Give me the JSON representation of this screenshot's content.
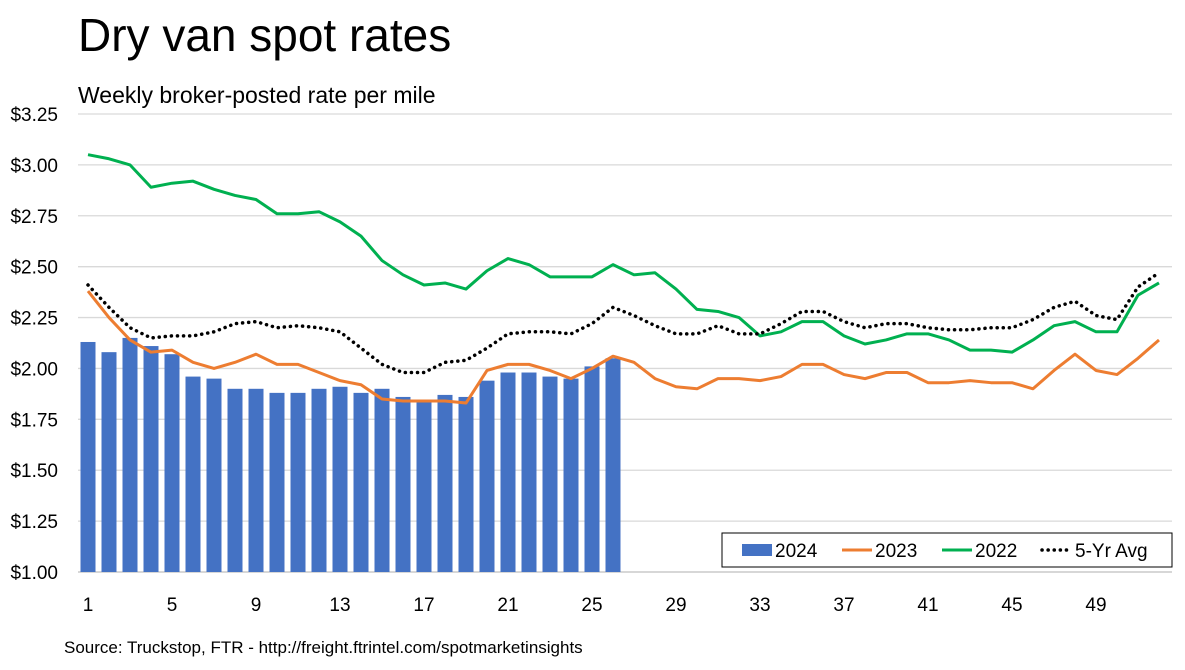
{
  "chart_data": {
    "type": "bar+line",
    "title": "Dry van spot rates",
    "subtitle": "Weekly broker-posted rate per mile",
    "source": "Source: Truckstop, FTR - http://freight.ftrintel.com/spotmarketinsights",
    "ylim": [
      1.0,
      3.25
    ],
    "yticks": [
      "$1.00",
      "$1.25",
      "$1.50",
      "$1.75",
      "$2.00",
      "$2.25",
      "$2.50",
      "$2.75",
      "$3.00",
      "$3.25"
    ],
    "xticks": [
      "1",
      "5",
      "9",
      "13",
      "17",
      "21",
      "25",
      "29",
      "33",
      "37",
      "41",
      "45",
      "49"
    ],
    "x_range": [
      1,
      52
    ],
    "grid": "horizontal",
    "legend": "bottom-right",
    "series": [
      {
        "name": "2024",
        "kind": "bar",
        "color": "#4472C4",
        "values": [
          2.13,
          2.08,
          2.15,
          2.11,
          2.07,
          1.96,
          1.95,
          1.9,
          1.9,
          1.88,
          1.88,
          1.9,
          1.91,
          1.88,
          1.9,
          1.86,
          1.84,
          1.87,
          1.86,
          1.94,
          1.98,
          1.98,
          1.96,
          1.95,
          2.01,
          2.05
        ]
      },
      {
        "name": "2023",
        "kind": "line",
        "color": "#ED7D31",
        "values": [
          2.38,
          2.25,
          2.14,
          2.08,
          2.09,
          2.03,
          2.0,
          2.03,
          2.07,
          2.02,
          2.02,
          1.98,
          1.94,
          1.92,
          1.85,
          1.84,
          1.84,
          1.84,
          1.83,
          1.99,
          2.02,
          2.02,
          1.99,
          1.95,
          2.0,
          2.06,
          2.03,
          1.95,
          1.91,
          1.9,
          1.95,
          1.95,
          1.94,
          1.96,
          2.02,
          2.02,
          1.97,
          1.95,
          1.98,
          1.98,
          1.93,
          1.93,
          1.94,
          1.93,
          1.93,
          1.9,
          1.99,
          2.07,
          1.99,
          1.97,
          2.05,
          2.14
        ]
      },
      {
        "name": "2022",
        "kind": "line",
        "color": "#00B050",
        "values": [
          3.05,
          3.03,
          3.0,
          2.89,
          2.91,
          2.92,
          2.88,
          2.85,
          2.83,
          2.76,
          2.76,
          2.77,
          2.72,
          2.65,
          2.53,
          2.46,
          2.41,
          2.42,
          2.39,
          2.48,
          2.54,
          2.51,
          2.45,
          2.45,
          2.45,
          2.51,
          2.46,
          2.47,
          2.39,
          2.29,
          2.28,
          2.25,
          2.16,
          2.18,
          2.23,
          2.23,
          2.16,
          2.12,
          2.14,
          2.17,
          2.17,
          2.14,
          2.09,
          2.09,
          2.08,
          2.14,
          2.21,
          2.23,
          2.18,
          2.18,
          2.36,
          2.42
        ]
      },
      {
        "name": "5-Yr Avg",
        "kind": "dotted-line",
        "color": "#000000",
        "values": [
          2.41,
          2.3,
          2.2,
          2.15,
          2.16,
          2.16,
          2.18,
          2.22,
          2.23,
          2.2,
          2.21,
          2.2,
          2.18,
          2.1,
          2.02,
          1.98,
          1.98,
          2.03,
          2.04,
          2.1,
          2.17,
          2.18,
          2.18,
          2.17,
          2.22,
          2.3,
          2.26,
          2.21,
          2.17,
          2.17,
          2.21,
          2.17,
          2.17,
          2.22,
          2.28,
          2.28,
          2.23,
          2.2,
          2.22,
          2.22,
          2.2,
          2.19,
          2.19,
          2.2,
          2.2,
          2.24,
          2.3,
          2.33,
          2.26,
          2.24,
          2.4,
          2.47
        ]
      }
    ]
  }
}
